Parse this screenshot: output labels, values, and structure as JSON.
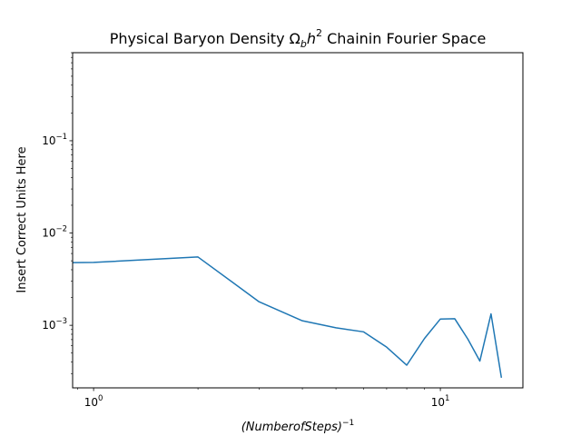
{
  "chart_data": {
    "type": "line",
    "title_main": "Physical Baryon Density Ω",
    "title_sub": "b",
    "title_var": "h",
    "title_sup": "2",
    "title_tail": " Chainin Fourier Space",
    "xlabel_main": "(NumberofSteps)",
    "xlabel_sup": "−1",
    "ylabel": "Insert Correct Units Here",
    "xscale": "log",
    "yscale": "log",
    "xlim": [
      0.87,
      17.3
    ],
    "ylim": [
      0.00021,
      0.9
    ],
    "x_ticks": [
      {
        "value": 1,
        "base": "10",
        "exp": "0"
      },
      {
        "value": 10,
        "base": "10",
        "exp": "1"
      }
    ],
    "y_ticks": [
      {
        "value": 0.001,
        "base": "10",
        "exp": "−3"
      },
      {
        "value": 0.01,
        "base": "10",
        "exp": "−2"
      },
      {
        "value": 0.1,
        "base": "10",
        "exp": "−1"
      }
    ],
    "grid": false,
    "series": [
      {
        "color": "#1f77b4",
        "x": [
          0.5,
          1,
          2,
          3,
          4,
          5,
          6,
          7,
          8,
          9,
          10,
          11,
          12,
          13,
          14,
          15
        ],
        "y": [
          0.0047,
          0.0048,
          0.0055,
          0.0018,
          0.00112,
          0.00094,
          0.00085,
          0.00058,
          0.00037,
          0.00072,
          0.00117,
          0.00118,
          0.00071,
          0.00041,
          0.00133,
          0.00027
        ]
      }
    ]
  }
}
